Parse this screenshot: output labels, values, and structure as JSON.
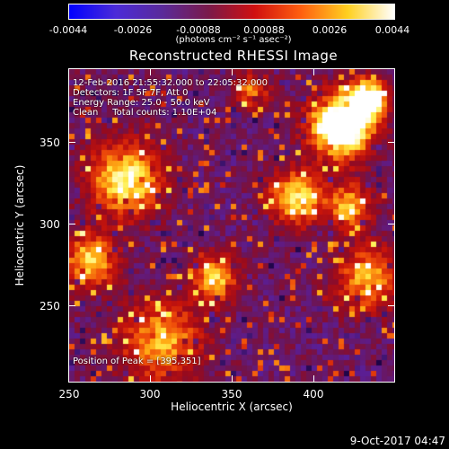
{
  "colorbar": {
    "ticks": [
      "-0.0044",
      "-0.0026",
      "-0.00088",
      "0.00088",
      "0.0026",
      "0.0044"
    ],
    "units": "(photons cm⁻² s⁻¹ asec⁻²)",
    "colors": [
      "#0000ff",
      "#4b2bd8",
      "#5a2a9a",
      "#7a1a4a",
      "#d01010",
      "#ff6010",
      "#ffd020",
      "#ffffff"
    ]
  },
  "plot": {
    "title": "Reconstructed RHESSI Image",
    "info_lines": [
      "12-Feb-2016 21:55:32.000 to 22:05:32.000",
      "Detectors: 1F 5F 7F, Att 0",
      "Energy Range: 25.0 - 50.0 keV",
      "Clean     Total counts: 1.10E+04"
    ],
    "peak_label": "Position of Peak = [395,351]"
  },
  "axes": {
    "x_label": "Heliocentric X (arcsec)",
    "y_label": "Heliocentric Y (arcsec)",
    "x_ticks": [
      "250",
      "300",
      "350",
      "400"
    ],
    "y_ticks": [
      "250",
      "300",
      "350"
    ],
    "x_range": [
      250,
      440
    ],
    "y_range": [
      205,
      388
    ]
  },
  "footer": {
    "timestamp": "9-Oct-2017 04:47"
  }
}
